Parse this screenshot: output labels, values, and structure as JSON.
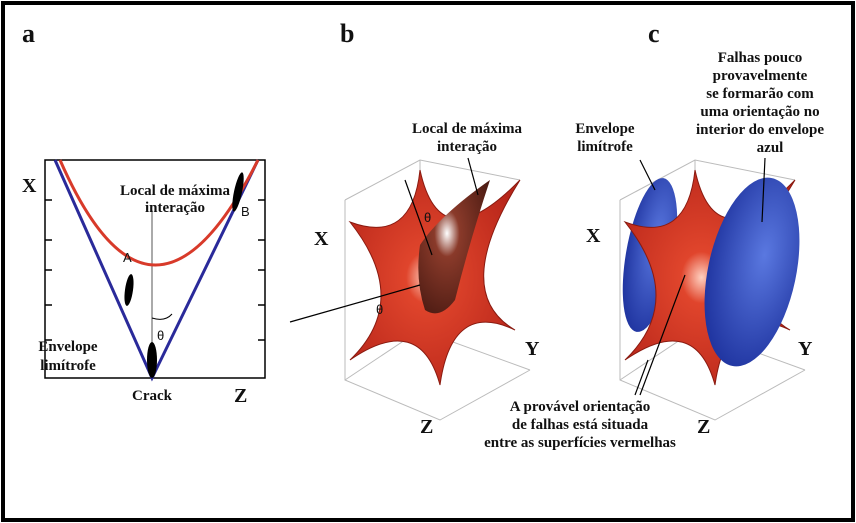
{
  "panels": [
    {
      "letter": "a",
      "axis_x": "X",
      "axis_z": "Crack",
      "axis_z2": "Z",
      "point_a": "A",
      "point_b": "B",
      "angle": "θ",
      "max_interaction": [
        "Local de máxima",
        "interação"
      ],
      "envelope": [
        "Envelope",
        "limítrofe"
      ]
    },
    {
      "letter": "b",
      "axis_x": "X",
      "axis_y": "Y",
      "axis_z": "Z",
      "angle_top": "θ",
      "angle_bottom": "θ",
      "max_interaction": [
        "Local de máxima",
        "interação"
      ]
    },
    {
      "letter": "c",
      "axis_x": "X",
      "axis_y": "Y",
      "axis_z": "Z",
      "unlikely_faults": [
        "Falhas pouco",
        "provavelmente",
        "se formarão com",
        "uma orientação no",
        "interior do envelope",
        "azul"
      ],
      "envelope": [
        "Envelope",
        "limítrofe"
      ],
      "likely_orientation": [
        "A provável orientação",
        "de falhas está situada",
        "entre as superfícies vermelhas"
      ]
    }
  ]
}
